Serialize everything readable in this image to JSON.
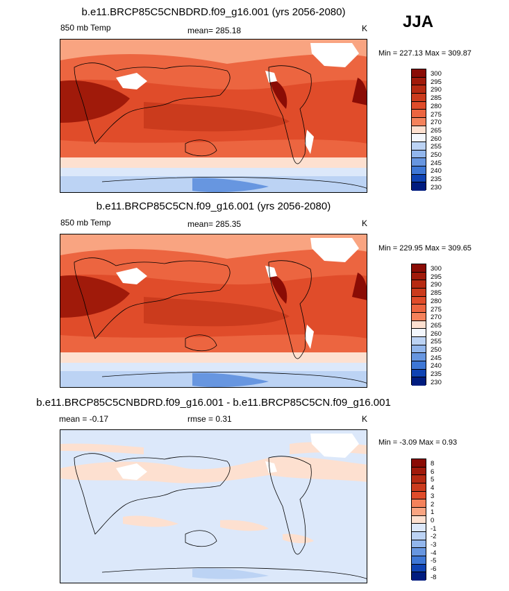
{
  "season": "JJA",
  "colors": {
    "warm": [
      "#fde0d0",
      "#fbc5a9",
      "#f9a481",
      "#f4825b",
      "#ec6540",
      "#e04c2a",
      "#cb3b1d",
      "#b62a12",
      "#a01a0a",
      "#8a0c05"
    ],
    "cool": [
      "#f3f7fd",
      "#dce8fa",
      "#bcd3f4",
      "#92b6ec",
      "#6796e0",
      "#3e77d5",
      "#215cc8",
      "#0f43b3",
      "#062e9a",
      "#001c7f"
    ]
  },
  "panels": [
    {
      "title": "b.e11.BRCP85C5CNBDRD.f09_g16.001 (yrs 2056-2080)",
      "left": "850 mb Temp",
      "center": "mean= 285.18",
      "right": "K",
      "minmax": "Min = 227.13 Max = 309.87",
      "levels": [
        "300",
        "295",
        "290",
        "285",
        "280",
        "275",
        "270",
        "265",
        "260",
        "255",
        "250",
        "245",
        "240",
        "235",
        "230"
      ]
    },
    {
      "title": "b.e11.BRCP85C5CN.f09_g16.001 (yrs 2056-2080)",
      "left": "850 mb Temp",
      "center": "mean= 285.35",
      "right": "K",
      "minmax": "Min = 229.95 Max = 309.65",
      "levels": [
        "300",
        "295",
        "290",
        "285",
        "280",
        "275",
        "270",
        "265",
        "260",
        "255",
        "250",
        "245",
        "240",
        "235",
        "230"
      ]
    },
    {
      "title": "b.e11.BRCP85C5CNBDRD.f09_g16.001 - b.e11.BRCP85C5CN.f09_g16.001",
      "left": "mean =   -0.17",
      "center": "rmse =   0.31",
      "right": "K",
      "minmax": "Min =  -3.09 Max =   0.93",
      "levels": [
        "8",
        "6",
        "5",
        "4",
        "3",
        "2",
        "1",
        "0",
        "-1",
        "-2",
        "-3",
        "-4",
        "-5",
        "-6",
        "-8"
      ]
    }
  ]
}
